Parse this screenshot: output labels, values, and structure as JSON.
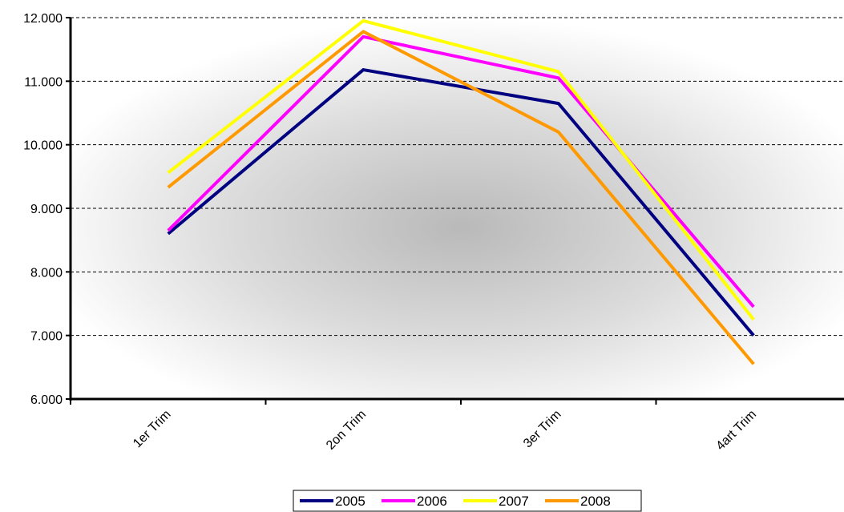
{
  "chart_data": {
    "type": "line",
    "categories": [
      "1er Trim",
      "2on Trim",
      "3er Trim",
      "4art Trim"
    ],
    "y_tick_labels": [
      "6.000",
      "7.000",
      "8.000",
      "9.000",
      "10.000",
      "11.000",
      "12.000"
    ],
    "y_ticks": [
      6000,
      7000,
      8000,
      9000,
      10000,
      11000,
      12000
    ],
    "ylim": [
      6000,
      12000
    ],
    "grid": true,
    "legend_position": "bottom",
    "series": [
      {
        "name": "2005",
        "color": "#000080",
        "values": [
          8600,
          11180,
          10650,
          7000
        ]
      },
      {
        "name": "2006",
        "color": "#ff00ff",
        "values": [
          8650,
          11700,
          11050,
          7450
        ]
      },
      {
        "name": "2007",
        "color": "#ffff00",
        "values": [
          9560,
          11950,
          11150,
          7250
        ]
      },
      {
        "name": "2008",
        "color": "#ff9900",
        "values": [
          9330,
          11780,
          10200,
          6550
        ]
      }
    ]
  }
}
